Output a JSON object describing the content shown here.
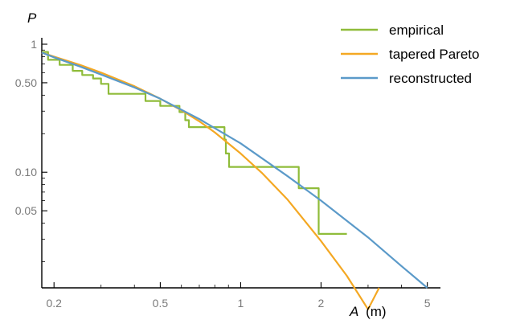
{
  "chart_data": {
    "type": "line",
    "title": "",
    "xlabel": "A (m)",
    "xlabel_var": "A",
    "xlabel_unit": "(m)",
    "ylabel": "P",
    "xscale": "log",
    "yscale": "log",
    "xlim": [
      0.18,
      5.6
    ],
    "ylim": [
      0.0125,
      1.0
    ],
    "xticks": [
      0.2,
      0.5,
      1,
      2,
      5
    ],
    "xtick_labels": [
      "0.2",
      "0.5",
      "1",
      "2",
      "5"
    ],
    "yticks": [
      1,
      0.5,
      0.1,
      0.05
    ],
    "ytick_labels": [
      "1",
      "0.50",
      "0.10",
      "0.05"
    ],
    "legend_position": "top-right",
    "series": [
      {
        "name": "empirical",
        "color": "#8fbc3a",
        "style": "step",
        "x": [
          0.18,
          0.19,
          0.21,
          0.235,
          0.255,
          0.28,
          0.3,
          0.32,
          0.44,
          0.5,
          0.59,
          0.62,
          0.64,
          0.87,
          0.88,
          0.905,
          1.65,
          1.96,
          2.5
        ],
        "y": [
          0.87,
          0.755,
          0.69,
          0.62,
          0.575,
          0.54,
          0.49,
          0.41,
          0.36,
          0.33,
          0.295,
          0.255,
          0.225,
          0.18,
          0.14,
          0.11,
          0.075,
          0.033,
          0.033
        ]
      },
      {
        "name": "tapered Pareto",
        "color": "#f4a823",
        "style": "line",
        "x": [
          0.18,
          0.2,
          0.25,
          0.3,
          0.4,
          0.5,
          0.6,
          0.7,
          0.8,
          1.0,
          1.2,
          1.5,
          2.0,
          2.5,
          3.0,
          3.3
        ],
        "y": [
          0.86,
          0.8,
          0.69,
          0.6,
          0.47,
          0.375,
          0.305,
          0.25,
          0.205,
          0.14,
          0.099,
          0.061,
          0.029,
          0.0155,
          0.0085,
          0.0125
        ]
      },
      {
        "name": "reconstructed",
        "color": "#5b9ac9",
        "style": "line",
        "x": [
          0.18,
          0.2,
          0.25,
          0.3,
          0.4,
          0.5,
          0.7,
          1.0,
          1.5,
          2.0,
          3.0,
          4.0,
          5.0
        ],
        "y": [
          0.86,
          0.79,
          0.67,
          0.58,
          0.46,
          0.375,
          0.26,
          0.168,
          0.093,
          0.06,
          0.031,
          0.0185,
          0.0125
        ]
      }
    ]
  }
}
